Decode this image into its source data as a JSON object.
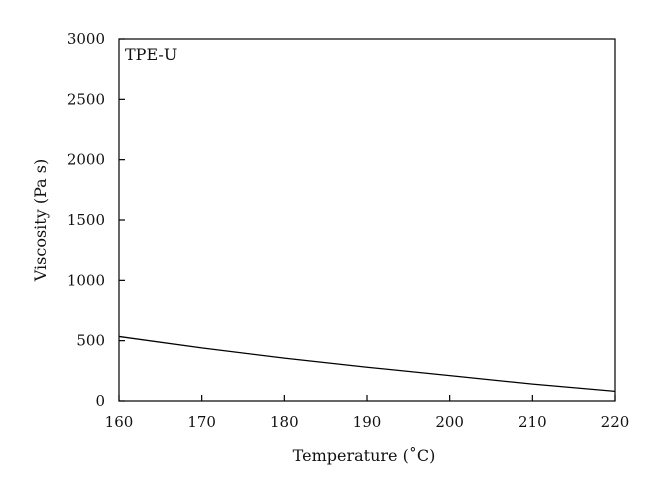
{
  "chart_data": {
    "type": "line",
    "title": "",
    "annotation": "TPE-U",
    "xlabel": "Temperature (˚C)",
    "ylabel": "Viscosity (Pa s)",
    "xlim": [
      160,
      220
    ],
    "ylim": [
      0,
      3000
    ],
    "xticks": [
      160,
      170,
      180,
      190,
      200,
      210,
      220
    ],
    "yticks": [
      0,
      500,
      1000,
      1500,
      2000,
      2500,
      3000
    ],
    "grid": false,
    "legend": "none",
    "series": [
      {
        "x": [
          160,
          170,
          180,
          190,
          200,
          210,
          220
        ],
        "y": [
          535,
          440,
          355,
          280,
          210,
          140,
          80
        ],
        "color": "#000000"
      }
    ]
  }
}
